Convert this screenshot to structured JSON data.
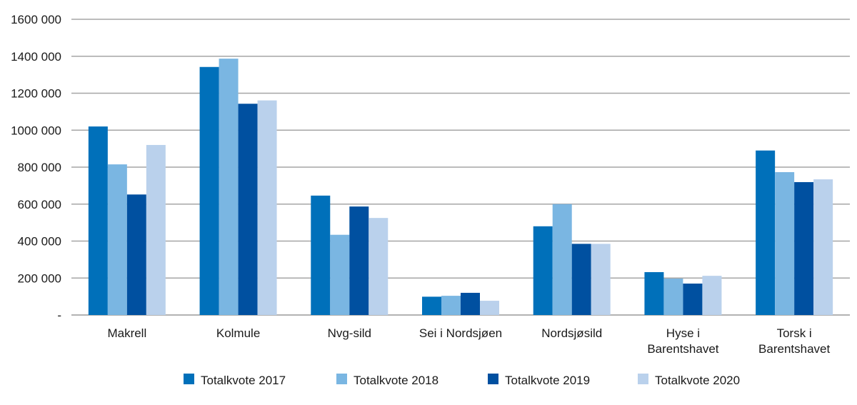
{
  "chart_data": {
    "type": "bar",
    "title": "",
    "xlabel": "",
    "ylabel": "",
    "ylim": [
      0,
      1600000
    ],
    "yticks": [
      0,
      200000,
      400000,
      600000,
      800000,
      1000000,
      1200000,
      1400000,
      1600000
    ],
    "ytick_labels": [
      "-",
      "200 000",
      "400 000",
      "600 000",
      "800 000",
      "1000 000",
      "1200 000",
      "1400 000",
      "1600 000"
    ],
    "grid": true,
    "legend_position": "bottom",
    "categories": [
      [
        "Makrell"
      ],
      [
        "Kolmule"
      ],
      [
        "Nvg-sild"
      ],
      [
        "Sei i Nordsjøen"
      ],
      [
        "Nordsjøsild"
      ],
      [
        "Hyse i",
        "Barentshavet"
      ],
      [
        "Torsk i",
        "Barentshavet"
      ]
    ],
    "series": [
      {
        "name": "Totalkvote 2017",
        "color": "#0070ba",
        "values": [
          1020000,
          1342000,
          646000,
          99000,
          480000,
          232000,
          890000
        ]
      },
      {
        "name": "Totalkvote 2018",
        "color": "#7ab6e2",
        "values": [
          815000,
          1387000,
          434000,
          104000,
          600000,
          197000,
          773000
        ]
      },
      {
        "name": "Totalkvote 2019",
        "color": "#0050a0",
        "values": [
          652000,
          1143000,
          587000,
          120000,
          385000,
          170000,
          719000
        ]
      },
      {
        "name": "Totalkvote 2020",
        "color": "#bad1ec",
        "values": [
          920000,
          1161000,
          525000,
          77000,
          385000,
          212000,
          734000
        ]
      }
    ]
  }
}
